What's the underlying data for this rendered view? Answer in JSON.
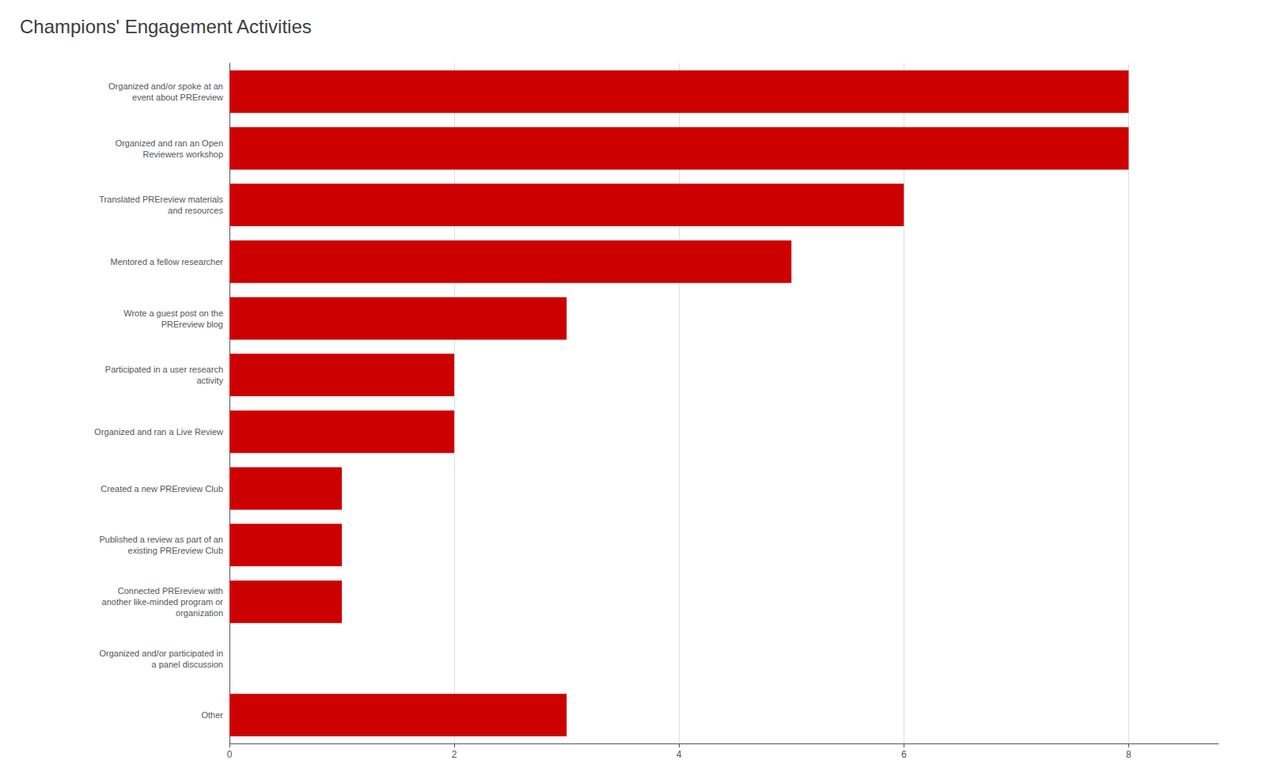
{
  "chart_data": {
    "type": "bar",
    "orientation": "horizontal",
    "title": "Champions' Engagement Activities",
    "categories": [
      "Other",
      "Organized and/or participated in\na panel discussion",
      "Connected PREreview with\nanother like-minded program or\norganization",
      "Published a review as part of an\nexisting PREreview Club",
      "Created a new PREreview Club",
      "Organized and ran a Live Review",
      "Participated in a user research\nactivity",
      "Wrote a guest post on the\nPREreview blog",
      "Mentored a fellow researcher",
      "Translated PREreview materials\nand resources",
      "Organized and ran an Open\nReviewers workshop",
      "Organized and/or spoke at an\nevent about PREreview"
    ],
    "values": [
      3,
      0,
      1,
      1,
      1,
      2,
      2,
      3,
      5,
      6,
      8,
      8
    ],
    "color": "#CC0000",
    "xlim": [
      0,
      8.8
    ],
    "xticks": [
      0,
      2,
      4,
      6,
      8
    ],
    "grid": true
  }
}
